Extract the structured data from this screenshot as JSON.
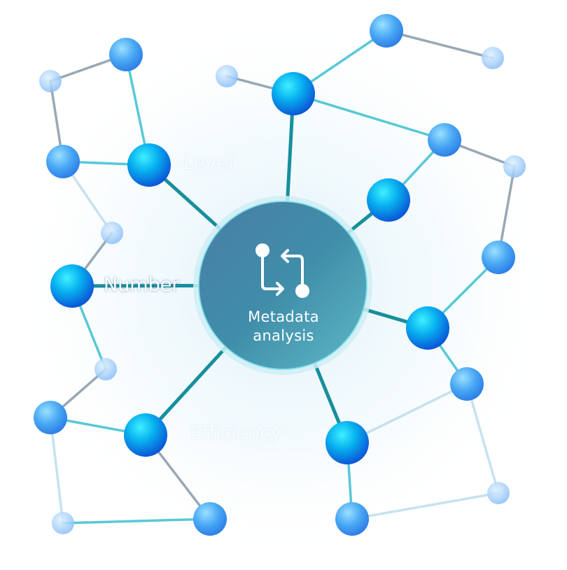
{
  "diagram": {
    "center": {
      "line1": "Metadata",
      "line2": "analysis",
      "icon": "git-pull-request-icon"
    },
    "branch_labels": [
      "Level",
      "Number",
      "Efficiency"
    ]
  },
  "colors": {
    "hub": "#4d8fa3",
    "major_node": "#0a86e6",
    "minor_node": "#4aa6f4",
    "faint_node": "#9cc9f7",
    "spoke": "#178f9c",
    "link_teal": "#45c4d1",
    "link_gray": "#8f9fae"
  }
}
